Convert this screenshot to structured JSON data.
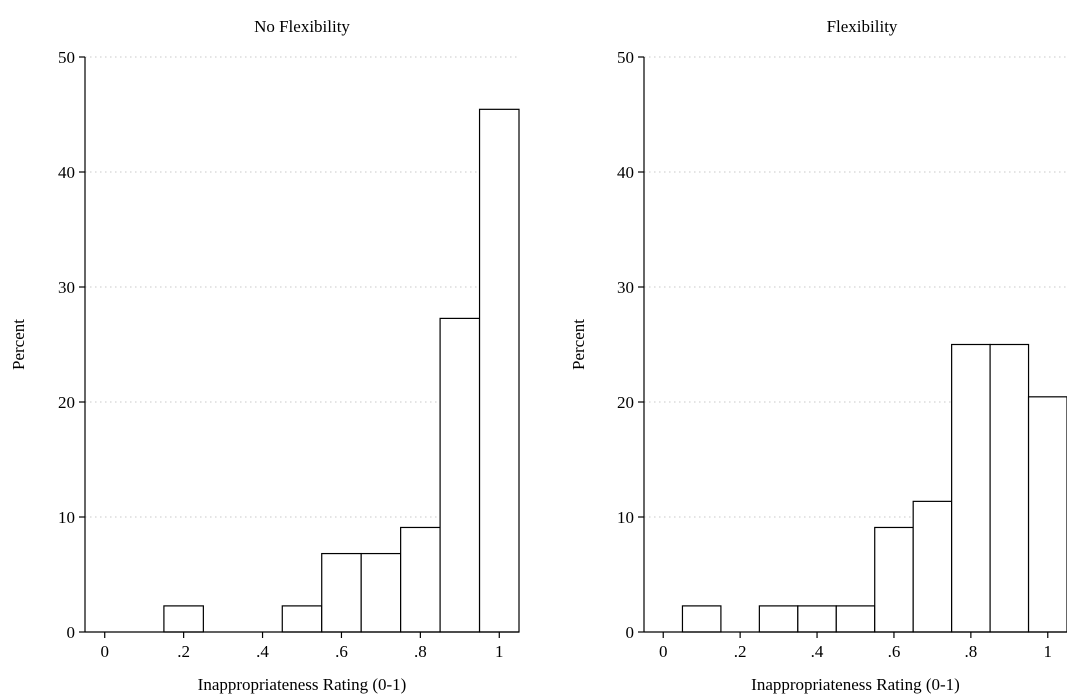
{
  "chart_data": [
    {
      "type": "bar",
      "title": "No Flexibility",
      "xlabel": "Inappropriateness Rating (0-1)",
      "ylabel": "Percent",
      "xlim": [
        -0.05,
        1.05
      ],
      "ylim": [
        0,
        50
      ],
      "grid": true,
      "xticks": [
        0,
        0.2,
        0.4,
        0.6,
        0.8,
        1
      ],
      "xtick_labels": [
        "0",
        ".2",
        ".4",
        ".6",
        ".8",
        "1"
      ],
      "yticks": [
        0,
        10,
        20,
        30,
        40,
        50
      ],
      "ytick_labels": [
        "0",
        "10",
        "20",
        "30",
        "40",
        "50"
      ],
      "bins": [
        {
          "x0": 0.15,
          "x1": 0.25,
          "value": 2.27
        },
        {
          "x0": 0.45,
          "x1": 0.55,
          "value": 2.27
        },
        {
          "x0": 0.55,
          "x1": 0.65,
          "value": 6.82
        },
        {
          "x0": 0.65,
          "x1": 0.75,
          "value": 6.82
        },
        {
          "x0": 0.75,
          "x1": 0.85,
          "value": 9.09
        },
        {
          "x0": 0.85,
          "x1": 0.95,
          "value": 27.27
        },
        {
          "x0": 0.95,
          "x1": 1.05,
          "value": 45.45
        }
      ]
    },
    {
      "type": "bar",
      "title": "Flexibility",
      "xlabel": "Inappropriateness Rating (0-1)",
      "ylabel": "Percent",
      "xlim": [
        -0.05,
        1.05
      ],
      "ylim": [
        0,
        50
      ],
      "grid": true,
      "xticks": [
        0,
        0.2,
        0.4,
        0.6,
        0.8,
        1
      ],
      "xtick_labels": [
        "0",
        ".2",
        ".4",
        ".6",
        ".8",
        "1"
      ],
      "yticks": [
        0,
        10,
        20,
        30,
        40,
        50
      ],
      "ytick_labels": [
        "0",
        "10",
        "20",
        "30",
        "40",
        "50"
      ],
      "bins": [
        {
          "x0": 0.05,
          "x1": 0.15,
          "value": 2.27
        },
        {
          "x0": 0.25,
          "x1": 0.35,
          "value": 2.27
        },
        {
          "x0": 0.35,
          "x1": 0.45,
          "value": 2.27
        },
        {
          "x0": 0.45,
          "x1": 0.55,
          "value": 2.27
        },
        {
          "x0": 0.55,
          "x1": 0.65,
          "value": 9.09
        },
        {
          "x0": 0.65,
          "x1": 0.75,
          "value": 11.36
        },
        {
          "x0": 0.75,
          "x1": 0.85,
          "value": 25.0
        },
        {
          "x0": 0.85,
          "x1": 0.95,
          "value": 25.0
        },
        {
          "x0": 0.95,
          "x1": 1.05,
          "value": 20.45
        }
      ]
    }
  ]
}
